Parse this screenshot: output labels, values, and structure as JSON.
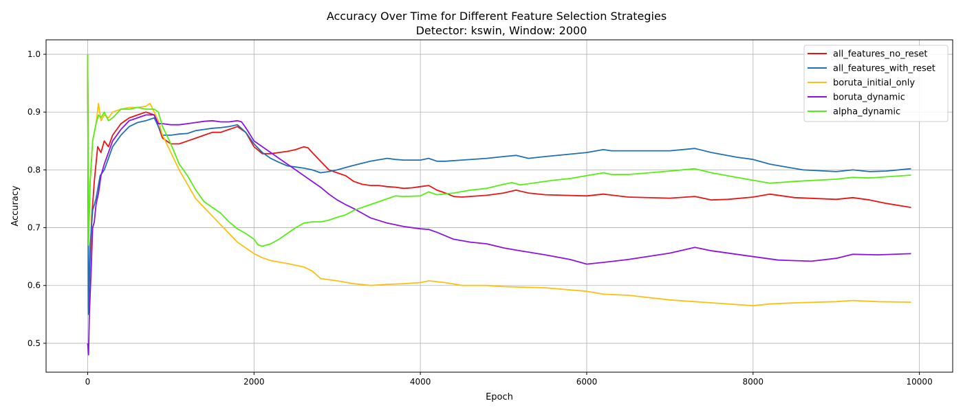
{
  "chart_data": {
    "type": "line",
    "title": "Accuracy Over Time for Different Feature Selection Strategies",
    "subtitle": "Detector: kswin, Window: 2000",
    "xlabel": "Epoch",
    "ylabel": "Accuracy",
    "xlim": [
      -500,
      10400
    ],
    "ylim": [
      0.45,
      1.025
    ],
    "xticks": [
      0,
      2000,
      4000,
      6000,
      8000,
      10000
    ],
    "xtick_labels": [
      "0",
      "2000",
      "4000",
      "6000",
      "8000",
      "10000"
    ],
    "yticks": [
      0.5,
      0.6,
      0.7,
      0.8,
      0.9,
      1.0
    ],
    "ytick_labels": [
      "0.5",
      "0.6",
      "0.7",
      "0.8",
      "0.9",
      "1.0"
    ],
    "grid": true,
    "legend_position": "top-right",
    "series": [
      {
        "name": "all_features_no_reset",
        "color": "#ee1111",
        "x": [
          0,
          10,
          30,
          50,
          80,
          120,
          160,
          200,
          250,
          300,
          400,
          500,
          600,
          700,
          800,
          900,
          1000,
          1100,
          1200,
          1300,
          1400,
          1500,
          1600,
          1700,
          1800,
          1900,
          2000,
          2100,
          2200,
          2300,
          2400,
          2500,
          2600,
          2650,
          2700,
          2800,
          2900,
          3000,
          3100,
          3200,
          3300,
          3400,
          3500,
          3600,
          3700,
          3800,
          3900,
          4000,
          4100,
          4200,
          4300,
          4400,
          4500,
          4600,
          4800,
          5000,
          5150,
          5300,
          5500,
          6000,
          6200,
          6500,
          7000,
          7300,
          7500,
          7700,
          8000,
          8200,
          8500,
          9000,
          9200,
          9400,
          9600,
          9900
        ],
        "y": [
          1.0,
          0.56,
          0.65,
          0.72,
          0.78,
          0.84,
          0.83,
          0.85,
          0.84,
          0.86,
          0.88,
          0.89,
          0.895,
          0.9,
          0.895,
          0.855,
          0.845,
          0.845,
          0.85,
          0.855,
          0.86,
          0.865,
          0.865,
          0.87,
          0.875,
          0.865,
          0.84,
          0.828,
          0.828,
          0.83,
          0.832,
          0.835,
          0.84,
          0.838,
          0.83,
          0.815,
          0.8,
          0.795,
          0.79,
          0.78,
          0.775,
          0.773,
          0.773,
          0.771,
          0.77,
          0.768,
          0.769,
          0.771,
          0.773,
          0.765,
          0.76,
          0.754,
          0.753,
          0.754,
          0.756,
          0.76,
          0.765,
          0.76,
          0.757,
          0.755,
          0.758,
          0.753,
          0.751,
          0.754,
          0.748,
          0.749,
          0.753,
          0.758,
          0.752,
          0.749,
          0.752,
          0.748,
          0.742,
          0.735
        ]
      },
      {
        "name": "all_features_with_reset",
        "color": "#1f6fb4",
        "x": [
          0,
          10,
          30,
          60,
          100,
          150,
          200,
          250,
          300,
          400,
          500,
          600,
          700,
          800,
          900,
          1000,
          1100,
          1200,
          1300,
          1400,
          1500,
          1600,
          1700,
          1800,
          1900,
          2000,
          2100,
          2200,
          2300,
          2400,
          2500,
          2600,
          2700,
          2800,
          2900,
          3000,
          3200,
          3400,
          3600,
          3700,
          3800,
          4000,
          4100,
          4200,
          4300,
          4500,
          4800,
          5000,
          5150,
          5300,
          5500,
          6000,
          6200,
          6300,
          6500,
          7000,
          7300,
          7500,
          7800,
          8000,
          8200,
          8400,
          8600,
          9000,
          9200,
          9400,
          9600,
          9900
        ],
        "y": [
          1.0,
          0.55,
          0.67,
          0.73,
          0.75,
          0.79,
          0.8,
          0.82,
          0.84,
          0.86,
          0.875,
          0.882,
          0.885,
          0.89,
          0.86,
          0.86,
          0.862,
          0.863,
          0.868,
          0.87,
          0.872,
          0.873,
          0.875,
          0.878,
          0.865,
          0.845,
          0.83,
          0.82,
          0.813,
          0.807,
          0.805,
          0.803,
          0.8,
          0.795,
          0.797,
          0.8,
          0.808,
          0.815,
          0.82,
          0.818,
          0.817,
          0.817,
          0.82,
          0.815,
          0.815,
          0.817,
          0.82,
          0.823,
          0.825,
          0.82,
          0.823,
          0.83,
          0.835,
          0.833,
          0.833,
          0.833,
          0.837,
          0.83,
          0.822,
          0.818,
          0.81,
          0.805,
          0.8,
          0.797,
          0.8,
          0.797,
          0.798,
          0.802
        ]
      },
      {
        "name": "boruta_initial_only",
        "color": "#fdc010",
        "x": [
          0,
          10,
          30,
          60,
          100,
          130,
          160,
          200,
          250,
          300,
          400,
          500,
          600,
          700,
          750,
          800,
          850,
          900,
          1000,
          1100,
          1200,
          1300,
          1400,
          1500,
          1600,
          1700,
          1800,
          1900,
          2000,
          2100,
          2200,
          2400,
          2600,
          2700,
          2800,
          3000,
          3200,
          3400,
          3600,
          3800,
          4000,
          4100,
          4300,
          4500,
          4800,
          5000,
          5500,
          6000,
          6200,
          6500,
          7000,
          7500,
          8000,
          8200,
          8500,
          9000,
          9200,
          9500,
          9900
        ],
        "y": [
          1.0,
          0.68,
          0.78,
          0.85,
          0.88,
          0.915,
          0.885,
          0.895,
          0.89,
          0.9,
          0.905,
          0.908,
          0.908,
          0.91,
          0.915,
          0.9,
          0.885,
          0.86,
          0.83,
          0.8,
          0.775,
          0.75,
          0.735,
          0.72,
          0.705,
          0.69,
          0.675,
          0.665,
          0.655,
          0.648,
          0.643,
          0.638,
          0.632,
          0.625,
          0.612,
          0.608,
          0.603,
          0.6,
          0.602,
          0.603,
          0.605,
          0.608,
          0.605,
          0.6,
          0.6,
          0.598,
          0.596,
          0.59,
          0.585,
          0.583,
          0.575,
          0.57,
          0.565,
          0.568,
          0.57,
          0.572,
          0.574,
          0.572,
          0.571
        ]
      },
      {
        "name": "boruta_dynamic",
        "color": "#8a10e8",
        "x": [
          0,
          10,
          20,
          40,
          60,
          80,
          100,
          130,
          160,
          200,
          250,
          300,
          400,
          500,
          600,
          700,
          800,
          850,
          900,
          1000,
          1100,
          1200,
          1300,
          1400,
          1500,
          1600,
          1700,
          1800,
          1850,
          1900,
          2000,
          2100,
          2200,
          2300,
          2400,
          2500,
          2600,
          2700,
          2800,
          2900,
          3000,
          3100,
          3200,
          3300,
          3400,
          3600,
          3800,
          4000,
          4100,
          4200,
          4400,
          4600,
          4800,
          5000,
          5200,
          5500,
          5800,
          6000,
          6200,
          6500,
          7000,
          7300,
          7500,
          8000,
          8300,
          8700,
          9000,
          9200,
          9500,
          9900
        ],
        "y": [
          0.5,
          0.48,
          0.55,
          0.62,
          0.7,
          0.71,
          0.74,
          0.76,
          0.79,
          0.81,
          0.83,
          0.85,
          0.87,
          0.885,
          0.89,
          0.895,
          0.895,
          0.88,
          0.88,
          0.878,
          0.878,
          0.88,
          0.882,
          0.884,
          0.885,
          0.883,
          0.883,
          0.885,
          0.883,
          0.873,
          0.85,
          0.84,
          0.83,
          0.82,
          0.81,
          0.8,
          0.79,
          0.78,
          0.77,
          0.758,
          0.748,
          0.74,
          0.733,
          0.725,
          0.717,
          0.708,
          0.702,
          0.698,
          0.697,
          0.692,
          0.68,
          0.675,
          0.672,
          0.665,
          0.66,
          0.653,
          0.645,
          0.637,
          0.64,
          0.645,
          0.656,
          0.666,
          0.66,
          0.65,
          0.644,
          0.642,
          0.647,
          0.654,
          0.653,
          0.655
        ]
      },
      {
        "name": "alpha_dynamic",
        "color": "#55ee11",
        "x": [
          0,
          10,
          30,
          60,
          100,
          130,
          160,
          200,
          250,
          300,
          400,
          500,
          600,
          700,
          800,
          850,
          900,
          1000,
          1100,
          1200,
          1300,
          1400,
          1500,
          1600,
          1700,
          1800,
          1900,
          2000,
          2050,
          2100,
          2200,
          2300,
          2400,
          2500,
          2600,
          2700,
          2800,
          2900,
          3000,
          3100,
          3200,
          3400,
          3600,
          3700,
          3800,
          4000,
          4100,
          4200,
          4400,
          4600,
          4800,
          5000,
          5100,
          5200,
          5400,
          5600,
          5800,
          6000,
          6200,
          6300,
          6500,
          7000,
          7300,
          7500,
          7800,
          8000,
          8200,
          8500,
          9000,
          9200,
          9400,
          9600,
          9900
        ],
        "y": [
          1.0,
          0.67,
          0.78,
          0.85,
          0.88,
          0.895,
          0.89,
          0.9,
          0.885,
          0.89,
          0.905,
          0.905,
          0.908,
          0.905,
          0.905,
          0.9,
          0.875,
          0.845,
          0.81,
          0.79,
          0.765,
          0.745,
          0.735,
          0.725,
          0.71,
          0.698,
          0.69,
          0.68,
          0.67,
          0.668,
          0.672,
          0.68,
          0.69,
          0.7,
          0.708,
          0.71,
          0.71,
          0.713,
          0.718,
          0.722,
          0.73,
          0.74,
          0.75,
          0.755,
          0.754,
          0.755,
          0.762,
          0.757,
          0.76,
          0.765,
          0.768,
          0.775,
          0.778,
          0.774,
          0.778,
          0.782,
          0.785,
          0.79,
          0.795,
          0.792,
          0.792,
          0.798,
          0.802,
          0.795,
          0.787,
          0.782,
          0.777,
          0.78,
          0.784,
          0.787,
          0.786,
          0.788,
          0.791
        ]
      }
    ]
  }
}
